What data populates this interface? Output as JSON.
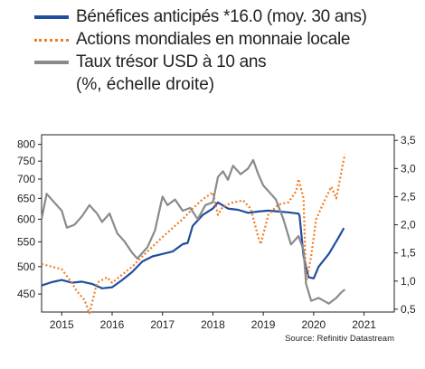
{
  "legend": {
    "items": [
      {
        "label": "Bénéfices anticipés *16.0 (moy. 30 ans)",
        "color": "#1f4e9e"
      },
      {
        "label": "Actions mondiales en monnaie locale",
        "color": "#f07c22"
      },
      {
        "label": "Taux trésor USD à 10 ans",
        "color": "#8a8a8a"
      }
    ],
    "extra": "(%, échelle droite)"
  },
  "source": "Source: Refinitiv Datastream",
  "chart_data": {
    "type": "line",
    "xlim": [
      2014.6,
      2021.6
    ],
    "x_ticks": [
      2015,
      2016,
      2017,
      2018,
      2019,
      2020,
      2021
    ],
    "left_axis": {
      "ticks": [
        450,
        500,
        550,
        600,
        650,
        700,
        750,
        800
      ],
      "scale": "log",
      "range": [
        420,
        830
      ]
    },
    "right_axis": {
      "ticks": [
        "0,5",
        "1,0",
        "1,5",
        "2,0",
        "2,5",
        "3,0",
        "3,5"
      ],
      "range": [
        0.45,
        3.6
      ]
    },
    "series": [
      {
        "name": "Bénéfices anticipés *16.0 (moy. 30 ans)",
        "axis": "left",
        "color": "#1f4e9e",
        "x": [
          2014.6,
          2014.8,
          2015.0,
          2015.2,
          2015.4,
          2015.6,
          2015.8,
          2016.0,
          2016.2,
          2016.4,
          2016.6,
          2016.8,
          2017.0,
          2017.2,
          2017.4,
          2017.5,
          2017.6,
          2017.8,
          2018.0,
          2018.1,
          2018.3,
          2018.5,
          2018.7,
          2018.9,
          2019.1,
          2019.3,
          2019.5,
          2019.7,
          2019.72,
          2019.8,
          2019.9,
          2020.0,
          2020.1,
          2020.3,
          2020.5,
          2020.6
        ],
        "y": [
          465,
          471,
          475,
          470,
          472,
          468,
          460,
          462,
          475,
          490,
          510,
          520,
          525,
          530,
          545,
          548,
          585,
          610,
          625,
          640,
          625,
          622,
          615,
          618,
          620,
          618,
          616,
          613,
          608,
          520,
          480,
          478,
          500,
          525,
          560,
          580
        ]
      },
      {
        "name": "Actions mondiales en monnaie locale",
        "axis": "left",
        "color": "#f07c22",
        "x": [
          2014.6,
          2014.8,
          2015.0,
          2015.2,
          2015.3,
          2015.45,
          2015.55,
          2015.7,
          2015.9,
          2016.0,
          2016.2,
          2016.4,
          2016.6,
          2016.8,
          2017.0,
          2017.2,
          2017.4,
          2017.6,
          2017.8,
          2018.0,
          2018.1,
          2018.2,
          2018.4,
          2018.6,
          2018.75,
          2018.9,
          2018.95,
          2019.1,
          2019.3,
          2019.5,
          2019.65,
          2019.7,
          2019.8,
          2019.85,
          2019.95,
          2020.05,
          2020.2,
          2020.35,
          2020.45,
          2020.55,
          2020.62
        ],
        "y": [
          505,
          500,
          495,
          470,
          455,
          440,
          418,
          470,
          480,
          470,
          485,
          500,
          520,
          540,
          560,
          580,
          600,
          625,
          648,
          665,
          610,
          630,
          640,
          645,
          625,
          560,
          545,
          610,
          635,
          640,
          668,
          700,
          650,
          470,
          520,
          600,
          640,
          680,
          650,
          720,
          770
        ]
      },
      {
        "name": "Taux trésor USD à 10 ans",
        "axis": "right",
        "color": "#8a8a8a",
        "x": [
          2014.6,
          2014.7,
          2014.85,
          2015.0,
          2015.1,
          2015.25,
          2015.4,
          2015.55,
          2015.7,
          2015.8,
          2015.95,
          2016.1,
          2016.25,
          2016.4,
          2016.5,
          2016.7,
          2016.85,
          2017.0,
          2017.1,
          2017.25,
          2017.4,
          2017.55,
          2017.7,
          2017.85,
          2018.0,
          2018.1,
          2018.2,
          2018.3,
          2018.4,
          2018.55,
          2018.7,
          2018.8,
          2018.9,
          2019.0,
          2019.1,
          2019.25,
          2019.4,
          2019.55,
          2019.7,
          2019.8,
          2019.85,
          2019.95,
          2020.1,
          2020.3,
          2020.45,
          2020.55,
          2020.62
        ],
        "y": [
          2.1,
          2.55,
          2.4,
          2.25,
          1.95,
          2.0,
          2.15,
          2.35,
          2.2,
          2.05,
          2.2,
          1.85,
          1.7,
          1.5,
          1.4,
          1.6,
          1.9,
          2.5,
          2.35,
          2.45,
          2.25,
          2.3,
          2.1,
          2.35,
          2.4,
          2.85,
          2.95,
          2.8,
          3.05,
          2.9,
          3.0,
          3.15,
          2.9,
          2.7,
          2.6,
          2.45,
          2.1,
          1.65,
          1.8,
          1.55,
          0.95,
          0.65,
          0.7,
          0.6,
          0.7,
          0.8,
          0.85
        ]
      }
    ]
  }
}
